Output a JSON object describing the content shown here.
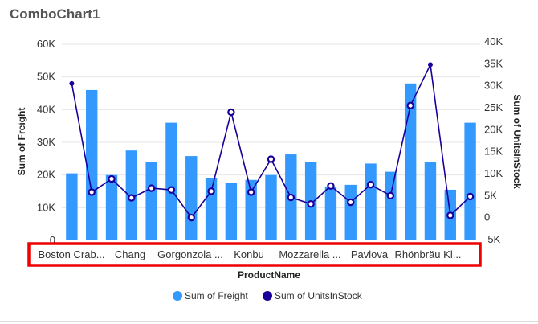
{
  "chart_title": "ComboChart1",
  "chart_data": {
    "type": "bar+line",
    "title": "ComboChart1",
    "xlabel": "ProductName",
    "ylabel": "Sum of Freight",
    "y2label": "Sum of UnitsInStock",
    "ylim": [
      0,
      60000
    ],
    "y2lim": [
      -5000,
      40000
    ],
    "y_ticks": [
      "0",
      "10K",
      "20K",
      "30K",
      "40K",
      "50K",
      "60K"
    ],
    "y2_ticks": [
      "-5K",
      "0",
      "5K",
      "10K",
      "15K",
      "20K",
      "25K",
      "30K",
      "35K",
      "40K"
    ],
    "x_tick_labels": [
      "Boston Crab...",
      "Chang",
      "Gorgonzola ...",
      "Konbu",
      "Mozzarella ...",
      "Pavlova",
      "Rhönbräu Kl..."
    ],
    "grid": true,
    "legend_position": "bottom",
    "series": [
      {
        "name": "Sum of Freight",
        "type": "bar",
        "color": "#3399ff",
        "values": [
          20500,
          46000,
          20000,
          27500,
          24000,
          36000,
          25800,
          19000,
          17500,
          18500,
          20000,
          26300,
          24000,
          16500,
          17000,
          23500,
          21000,
          48000,
          24000,
          15500,
          36000
        ]
      },
      {
        "name": "Sum of UnitsInStock",
        "type": "line",
        "color": "#1a0099",
        "values": [
          30500,
          5800,
          8800,
          4500,
          6700,
          6300,
          0,
          6000,
          24000,
          5800,
          13300,
          4600,
          3100,
          7200,
          3500,
          7500,
          5000,
          25500,
          34800,
          500,
          4800
        ]
      }
    ]
  }
}
